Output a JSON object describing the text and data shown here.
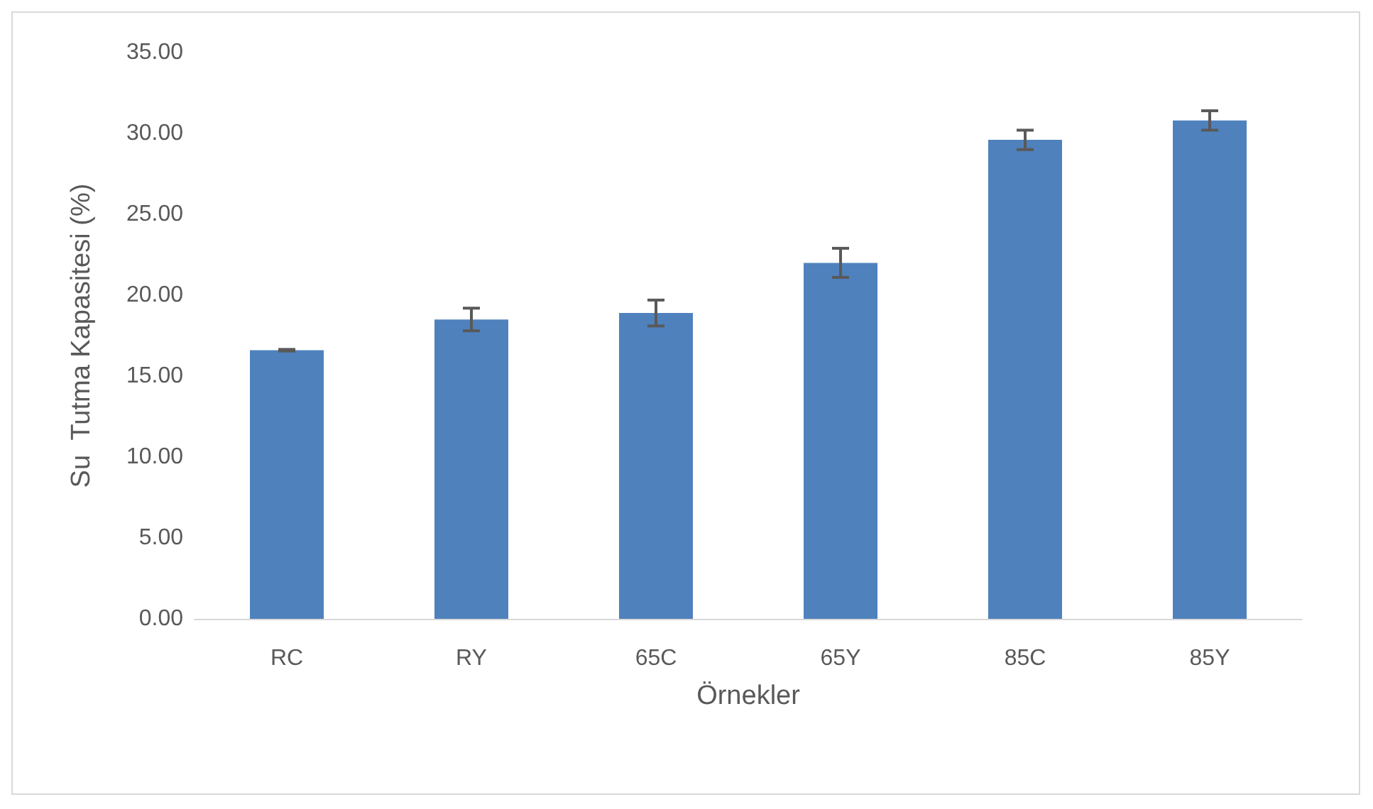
{
  "chart_data": {
    "type": "bar",
    "xlabel": "Örnekler",
    "ylabel": "Su  Tutma Kapasitesi (%)",
    "categories": [
      "RC",
      "RY",
      "65C",
      "65Y",
      "85C",
      "85Y"
    ],
    "values": [
      16.6,
      18.5,
      18.9,
      22.0,
      29.6,
      30.8
    ],
    "errors": [
      0.05,
      0.7,
      0.8,
      0.9,
      0.6,
      0.6
    ],
    "color": "#4f81bd",
    "ylim": [
      0,
      35
    ],
    "yticks": [
      {
        "value": 0,
        "label": "0.00"
      },
      {
        "value": 5,
        "label": "5.00"
      },
      {
        "value": 10,
        "label": "10.00"
      },
      {
        "value": 15,
        "label": "15.00"
      },
      {
        "value": 20,
        "label": "20.00"
      },
      {
        "value": 25,
        "label": "25.00"
      },
      {
        "value": 30,
        "label": "30.00"
      },
      {
        "value": 35,
        "label": "35.00"
      }
    ],
    "grid": false
  }
}
